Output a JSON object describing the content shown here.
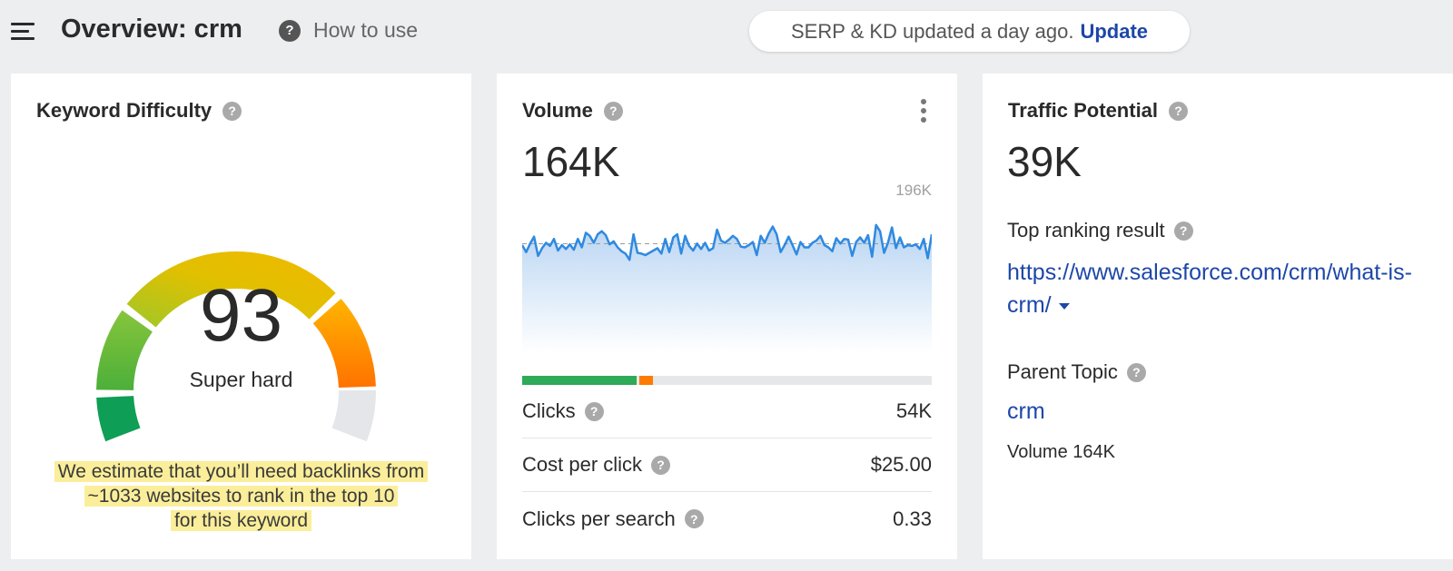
{
  "header": {
    "title": "Overview: crm",
    "help_label": "How to use",
    "status_text": "SERP & KD updated a day ago.",
    "update_label": "Update"
  },
  "kd_card": {
    "title": "Keyword Difficulty",
    "value": "93",
    "label": "Super hard",
    "note_lines": [
      "We estimate that you’ll need backlinks from",
      "~1033 websites to rank in the top 10",
      "for this keyword"
    ],
    "gauge_level": 0.93
  },
  "volume_card": {
    "title": "Volume",
    "value": "164K",
    "chart_max_label": "196K",
    "metrics": [
      {
        "label": "Clicks",
        "value": "54K"
      },
      {
        "label": "Cost per click",
        "value": "$25.00"
      },
      {
        "label": "Clicks per search",
        "value": "0.33"
      }
    ],
    "clicks_bar": [
      {
        "kind": "organic",
        "fraction": 0.28,
        "color": "#2eaa58"
      },
      {
        "kind": "paid",
        "fraction": 0.04,
        "color": "#ff7a00"
      }
    ],
    "trend": [
      140,
      131,
      142,
      151,
      126,
      136,
      143,
      139,
      148,
      133,
      140,
      135,
      141,
      134,
      148,
      137,
      156,
      152,
      143,
      154,
      158,
      153,
      141,
      145,
      137,
      132,
      129,
      121,
      154,
      130,
      129,
      127,
      130,
      133,
      136,
      129,
      148,
      131,
      150,
      154,
      129,
      152,
      139,
      133,
      142,
      135,
      143,
      133,
      136,
      160,
      146,
      143,
      147,
      152,
      148,
      138,
      137,
      140,
      144,
      127,
      152,
      143,
      155,
      164,
      154,
      131,
      140,
      151,
      140,
      128,
      144,
      137,
      137,
      143,
      146,
      152,
      140,
      137,
      132,
      149,
      142,
      148,
      147,
      126,
      144,
      150,
      143,
      153,
      125,
      166,
      158,
      130,
      143,
      163,
      136,
      150,
      137,
      140,
      139,
      141,
      135,
      148,
      123,
      154
    ]
  },
  "traffic_card": {
    "title": "Traffic Potential",
    "value": "39K",
    "top_result_label": "Top ranking result",
    "top_result_url": "https://www.salesforce.com/crm/what-is-crm/",
    "parent_topic_label": "Parent Topic",
    "parent_topic": "crm",
    "parent_volume": "Volume 164K"
  },
  "colors": {
    "link": "#1d47a8",
    "line": "#2f8ae0",
    "highlight": "#fbee9a"
  }
}
